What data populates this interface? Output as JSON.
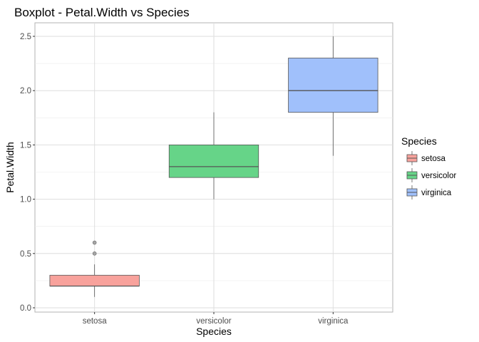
{
  "chart_data": {
    "type": "boxplot",
    "title": "Boxplot - Petal.Width vs Species",
    "xlabel": "Species",
    "ylabel": "Petal.Width",
    "ylim": [
      0,
      2.5
    ],
    "yticks": [
      "0.0",
      "0.5",
      "1.0",
      "1.5",
      "2.0",
      "2.5"
    ],
    "grid": true,
    "legend": {
      "title": "Species",
      "position": "right"
    },
    "categories": [
      "setosa",
      "versicolor",
      "virginica"
    ],
    "colors": {
      "setosa": "#f8a29c",
      "versicolor": "#66d488",
      "virginica": "#a0c0fb"
    },
    "series": [
      {
        "name": "setosa",
        "min": 0.1,
        "q1": 0.2,
        "median": 0.2,
        "q3": 0.3,
        "max": 0.4,
        "outliers": [
          0.5,
          0.6
        ]
      },
      {
        "name": "versicolor",
        "min": 1.0,
        "q1": 1.2,
        "median": 1.3,
        "q3": 1.5,
        "max": 1.8,
        "outliers": []
      },
      {
        "name": "virginica",
        "min": 1.4,
        "q1": 1.8,
        "median": 2.0,
        "q3": 2.3,
        "max": 2.5,
        "outliers": []
      }
    ]
  }
}
